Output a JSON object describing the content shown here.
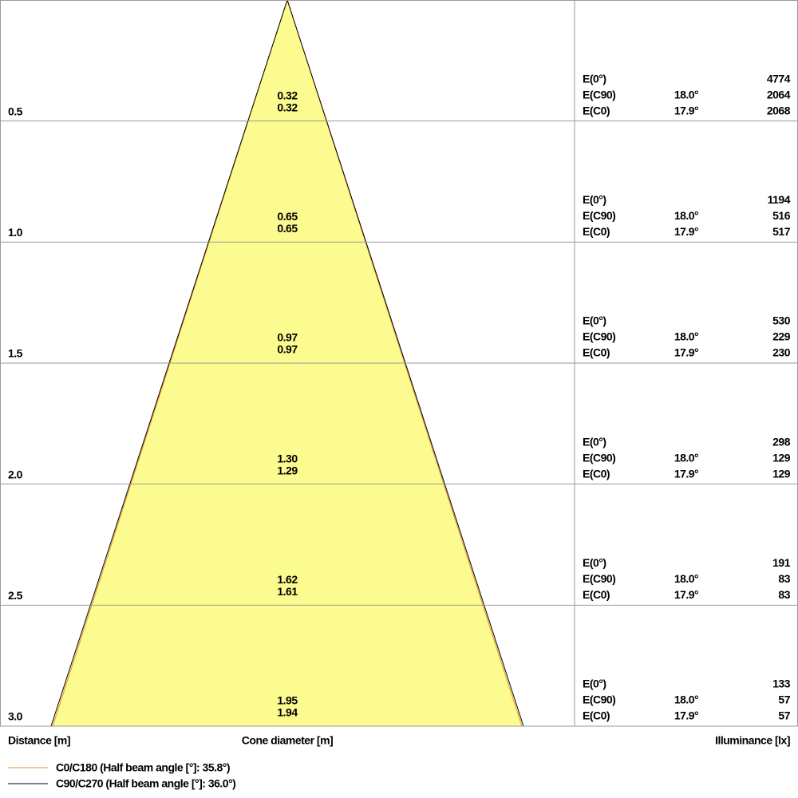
{
  "rows": [
    {
      "distance": "0.5",
      "diameters": [
        "0.32",
        "0.32"
      ],
      "e0": [
        "E(0°)",
        "4774"
      ],
      "ec90": [
        "E(C90)",
        "18.0°",
        "2064"
      ],
      "ec0": [
        "E(C0)",
        "17.9°",
        "2068"
      ]
    },
    {
      "distance": "1.0",
      "diameters": [
        "0.65",
        "0.65"
      ],
      "e0": [
        "E(0°)",
        "1194"
      ],
      "ec90": [
        "E(C90)",
        "18.0°",
        "516"
      ],
      "ec0": [
        "E(C0)",
        "17.9°",
        "517"
      ]
    },
    {
      "distance": "1.5",
      "diameters": [
        "0.97",
        "0.97"
      ],
      "e0": [
        "E(0°)",
        "530"
      ],
      "ec90": [
        "E(C90)",
        "18.0°",
        "229"
      ],
      "ec0": [
        "E(C0)",
        "17.9°",
        "230"
      ]
    },
    {
      "distance": "2.0",
      "diameters": [
        "1.30",
        "1.29"
      ],
      "e0": [
        "E(0°)",
        "298"
      ],
      "ec90": [
        "E(C90)",
        "18.0°",
        "129"
      ],
      "ec0": [
        "E(C0)",
        "17.9°",
        "129"
      ]
    },
    {
      "distance": "2.5",
      "diameters": [
        "1.62",
        "1.61"
      ],
      "e0": [
        "E(0°)",
        "191"
      ],
      "ec90": [
        "E(C90)",
        "18.0°",
        "83"
      ],
      "ec0": [
        "E(C0)",
        "17.9°",
        "83"
      ]
    },
    {
      "distance": "3.0",
      "diameters": [
        "1.95",
        "1.94"
      ],
      "e0": [
        "E(0°)",
        "133"
      ],
      "ec90": [
        "E(C90)",
        "18.0°",
        "57"
      ],
      "ec0": [
        "E(C0)",
        "17.9°",
        "57"
      ]
    }
  ],
  "footer": {
    "distance": "Distance [m]",
    "cone": "Cone diameter [m]",
    "illuminance": "Illuminance [lx]"
  },
  "legend": [
    "C0/C180 (Half beam angle [°]: 35.8°)",
    "C90/C270 (Half beam angle [°]: 36.0°)"
  ]
}
